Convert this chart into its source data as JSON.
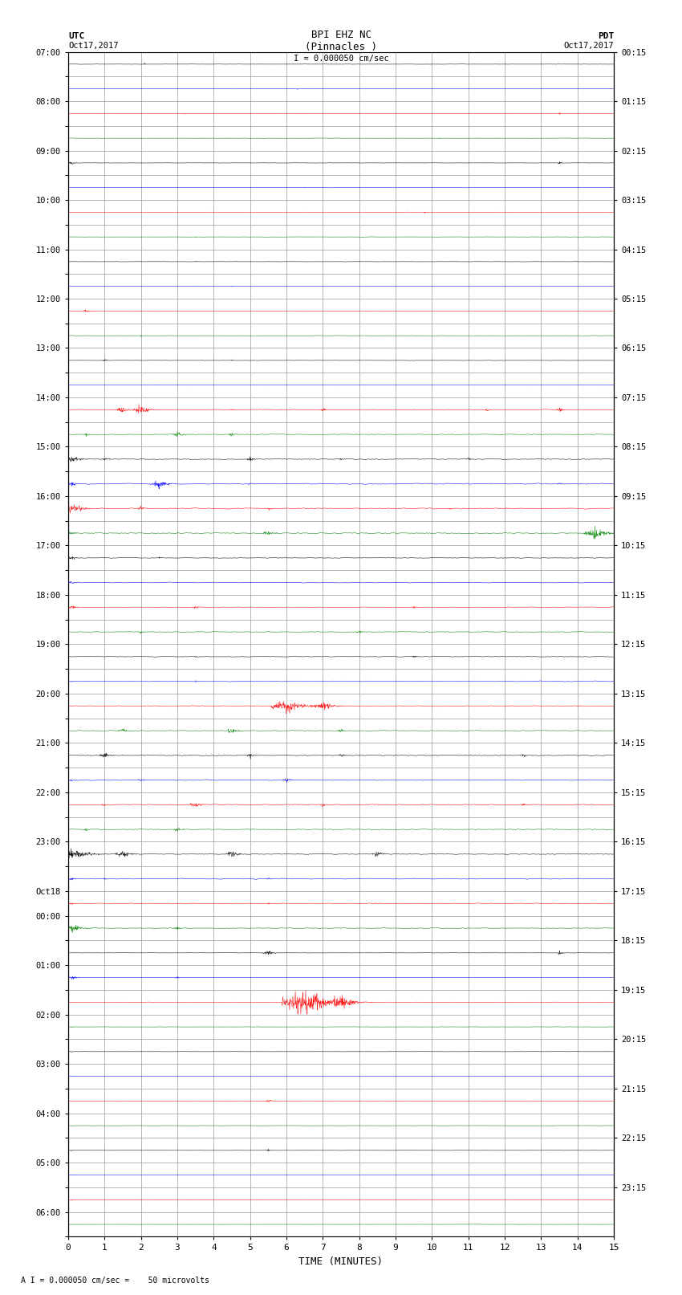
{
  "title_line1": "BPI EHZ NC",
  "title_line2": "(Pinnacles )",
  "scale_label": "I = 0.000050 cm/sec",
  "left_label_top": "UTC",
  "left_label_date": "Oct17,2017",
  "right_label_top": "PDT",
  "right_label_date": "Oct17,2017",
  "bottom_label": "TIME (MINUTES)",
  "footnote": "A I = 0.000050 cm/sec =    50 microvolts",
  "utc_labels": [
    "07:00",
    "",
    "08:00",
    "",
    "09:00",
    "",
    "10:00",
    "",
    "11:00",
    "",
    "12:00",
    "",
    "13:00",
    "",
    "14:00",
    "",
    "15:00",
    "",
    "16:00",
    "",
    "17:00",
    "",
    "18:00",
    "",
    "19:00",
    "",
    "20:00",
    "",
    "21:00",
    "",
    "22:00",
    "",
    "23:00",
    "",
    "Oct18",
    "00:00",
    "",
    "01:00",
    "",
    "02:00",
    "",
    "03:00",
    "",
    "04:00",
    "",
    "05:00",
    "",
    "06:00",
    ""
  ],
  "pdt_labels": [
    "00:15",
    "01:15",
    "02:15",
    "03:15",
    "04:15",
    "05:15",
    "06:15",
    "07:15",
    "08:15",
    "09:15",
    "10:15",
    "11:15",
    "12:15",
    "13:15",
    "14:15",
    "15:15",
    "16:15",
    "17:15",
    "18:15",
    "19:15",
    "20:15",
    "21:15",
    "22:15",
    "23:15"
  ],
  "n_rows": 48,
  "colors_cycle": [
    "black",
    "blue",
    "red",
    "green"
  ],
  "fig_width": 8.5,
  "fig_height": 16.13,
  "bg_color": "white",
  "grid_color": "#aaaaaa"
}
